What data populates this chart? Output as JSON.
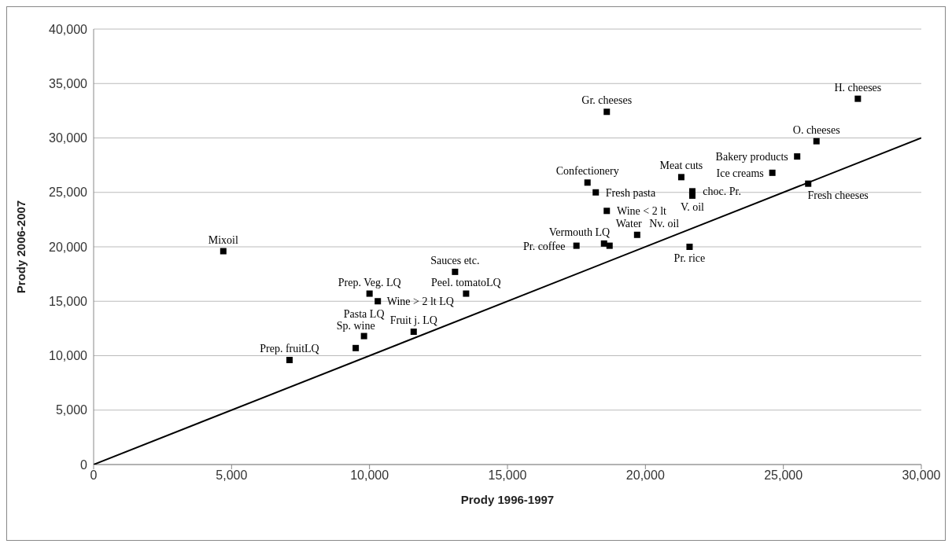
{
  "chart_data": {
    "type": "scatter",
    "xlabel": "Prody 1996-1997",
    "ylabel": "Prody 2006-2007",
    "xlim": [
      0,
      30000
    ],
    "ylim": [
      0,
      40000
    ],
    "xticks": [
      {
        "value": 0,
        "label": "0"
      },
      {
        "value": 5000,
        "label": "5,000"
      },
      {
        "value": 10000,
        "label": "10,000"
      },
      {
        "value": 15000,
        "label": "15,000"
      },
      {
        "value": 20000,
        "label": "20,000"
      },
      {
        "value": 25000,
        "label": "25,000"
      },
      {
        "value": 30000,
        "label": "30,000"
      }
    ],
    "yticks": [
      {
        "value": 0,
        "label": "0"
      },
      {
        "value": 5000,
        "label": "5,000"
      },
      {
        "value": 10000,
        "label": "10,000"
      },
      {
        "value": 15000,
        "label": "15,000"
      },
      {
        "value": 20000,
        "label": "20,000"
      },
      {
        "value": 25000,
        "label": "25,000"
      },
      {
        "value": 30000,
        "label": "30,000"
      },
      {
        "value": 35000,
        "label": "35,000"
      },
      {
        "value": 40000,
        "label": "40,000"
      }
    ],
    "grid": "y",
    "legend": false,
    "marker": "square",
    "series": [
      {
        "type": "scatter",
        "color": "#000000",
        "x": [
          4700,
          7100,
          9500,
          9800,
          10000,
          10300,
          11600,
          13100,
          13500,
          17900,
          18200,
          18600,
          18500,
          17500,
          18700,
          19700,
          18600,
          21300,
          21700,
          21700,
          21600,
          24600,
          25500,
          26200,
          25900,
          27700
        ],
        "values": [
          19600,
          9600,
          10700,
          11800,
          15700,
          15000,
          12200,
          17700,
          15700,
          25900,
          25000,
          32400,
          20300,
          20100,
          20100,
          21100,
          23300,
          26400,
          25100,
          24700,
          20000,
          26800,
          28300,
          29700,
          25800,
          33600
        ]
      },
      {
        "type": "line",
        "color": "#000000",
        "marker": "none",
        "line_style": "solid",
        "x": [
          0,
          30000
        ],
        "values": [
          0,
          30000
        ]
      }
    ],
    "annotations": [
      {
        "text": "Mixoil",
        "x": 4700,
        "y": 19600
      },
      {
        "text": "Prep. fruitLQ",
        "x": 7100,
        "y": 9600
      },
      {
        "text": "Sp. wine",
        "x": 9500,
        "y": 10700
      },
      {
        "text": "Pasta LQ",
        "x": 9800,
        "y": 11800
      },
      {
        "text": "Prep. Veg. LQ",
        "x": 10000,
        "y": 15700
      },
      {
        "text": "Wine > 2 lt LQ",
        "x": 10300,
        "y": 15000
      },
      {
        "text": "Fruit j. LQ",
        "x": 11600,
        "y": 12200
      },
      {
        "text": "Sauces etc.",
        "x": 13100,
        "y": 17700
      },
      {
        "text": "Peel. tomatoLQ",
        "x": 13500,
        "y": 15700
      },
      {
        "text": "Confectionery",
        "x": 17900,
        "y": 25900
      },
      {
        "text": "Fresh pasta",
        "x": 18200,
        "y": 25000
      },
      {
        "text": "Gr. cheeses",
        "x": 18600,
        "y": 32400
      },
      {
        "text": "Vermouth LQ",
        "x": 18500,
        "y": 20300
      },
      {
        "text": "Pr. coffee",
        "x": 17500,
        "y": 20100
      },
      {
        "text": "Water",
        "x": 18700,
        "y": 20100
      },
      {
        "text": "Nv.  oil",
        "x": 19700,
        "y": 21100
      },
      {
        "text": "Wine < 2 lt",
        "x": 18600,
        "y": 23300
      },
      {
        "text": "Meat cuts",
        "x": 21300,
        "y": 26400
      },
      {
        "text": "choc. Pr.",
        "x": 21700,
        "y": 25100
      },
      {
        "text": "V. oil",
        "x": 21700,
        "y": 24700
      },
      {
        "text": "Pr. rice",
        "x": 21600,
        "y": 20000
      },
      {
        "text": "Ice creams",
        "x": 24600,
        "y": 26800
      },
      {
        "text": "Bakery products",
        "x": 25500,
        "y": 28300
      },
      {
        "text": "O. cheeses",
        "x": 26200,
        "y": 29700
      },
      {
        "text": "Fresh cheeses",
        "x": 25900,
        "y": 25800
      },
      {
        "text": "H. cheeses",
        "x": 27700,
        "y": 33600
      }
    ]
  }
}
